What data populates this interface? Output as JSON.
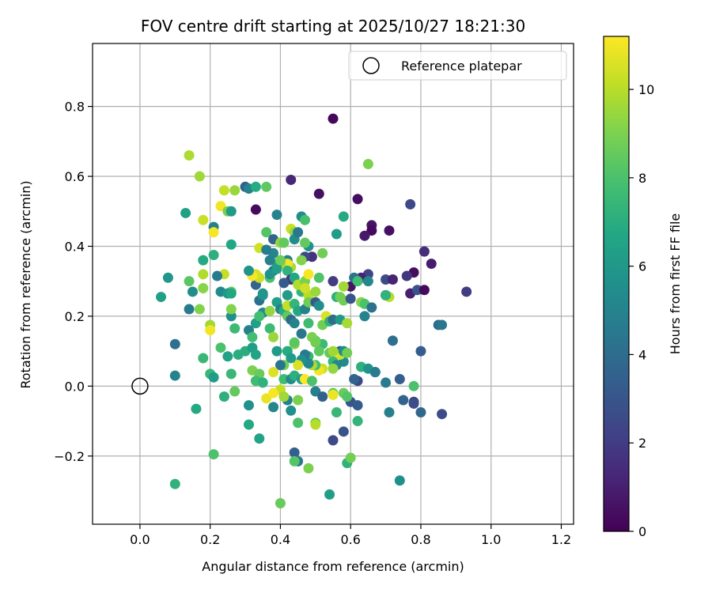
{
  "chart_data": {
    "type": "scatter",
    "title": "FOV centre drift starting at 2025/10/27 18:21:30",
    "xlabel": "Angular distance from reference (arcmin)",
    "ylabel": "Rotation from reference (arcmin)",
    "xlim": [
      -0.135,
      1.235
    ],
    "ylim": [
      -0.395,
      0.98
    ],
    "xticks": [
      0.0,
      0.2,
      0.4,
      0.6,
      0.8,
      1.0,
      1.2
    ],
    "xtick_labels": [
      "0.0",
      "0.2",
      "0.4",
      "0.6",
      "0.8",
      "1.0",
      "1.2"
    ],
    "yticks": [
      -0.2,
      0.0,
      0.2,
      0.4,
      0.6,
      0.8
    ],
    "ytick_labels": [
      "−0.2",
      "0.0",
      "0.2",
      "0.4",
      "0.6",
      "0.8"
    ],
    "grid": true,
    "legend": {
      "position": "top-right",
      "entries": [
        "Reference platepar"
      ]
    },
    "reference_point": {
      "x": 0.0,
      "y": 0.0,
      "label": "Reference platepar"
    },
    "colorbar": {
      "label": "Hours from first FF file",
      "colormap": "viridis",
      "vmin": 0,
      "vmax": 11.2,
      "ticks": [
        0,
        2,
        4,
        6,
        8,
        10
      ],
      "tick_labels": [
        "0",
        "2",
        "4",
        "6",
        "8",
        "10"
      ]
    },
    "points": [
      [
        0.55,
        0.765,
        0.2
      ],
      [
        0.51,
        0.55,
        0.5
      ],
      [
        0.62,
        0.535,
        0.4
      ],
      [
        0.33,
        0.505,
        0.3
      ],
      [
        0.66,
        0.46,
        0.6
      ],
      [
        0.66,
        0.445,
        0.3
      ],
      [
        0.64,
        0.43,
        0.8
      ],
      [
        0.71,
        0.445,
        0.5
      ],
      [
        0.77,
        0.52,
        2.5
      ],
      [
        0.81,
        0.385,
        1.5
      ],
      [
        0.83,
        0.35,
        0.9
      ],
      [
        0.78,
        0.325,
        0.4
      ],
      [
        0.76,
        0.315,
        1.8
      ],
      [
        0.7,
        0.305,
        2.6
      ],
      [
        0.72,
        0.305,
        1.2
      ],
      [
        0.65,
        0.32,
        2.3
      ],
      [
        0.63,
        0.31,
        1.1
      ],
      [
        0.6,
        0.285,
        0.6
      ],
      [
        0.7,
        0.26,
        0.7
      ],
      [
        0.77,
        0.265,
        1.0
      ],
      [
        0.79,
        0.275,
        3.0
      ],
      [
        0.81,
        0.275,
        0.3
      ],
      [
        0.93,
        0.27,
        2.0
      ],
      [
        0.85,
        0.175,
        3.9
      ],
      [
        0.86,
        0.175,
        4.4
      ],
      [
        0.72,
        0.13,
        4.1
      ],
      [
        0.8,
        0.1,
        3.3
      ],
      [
        0.67,
        0.04,
        0.8
      ],
      [
        0.62,
        0.015,
        2.4
      ],
      [
        0.7,
        0.01,
        4.6
      ],
      [
        0.74,
        0.02,
        3.4
      ],
      [
        0.78,
        0.0,
        8.0
      ],
      [
        0.75,
        -0.04,
        3.6
      ],
      [
        0.78,
        -0.045,
        2.2
      ],
      [
        0.78,
        -0.05,
        2.7
      ],
      [
        0.8,
        -0.075,
        3.8
      ],
      [
        0.86,
        -0.08,
        2.6
      ],
      [
        0.71,
        -0.075,
        4.9
      ],
      [
        0.74,
        -0.27,
        5.6
      ],
      [
        0.6,
        -0.045,
        3.0
      ],
      [
        0.62,
        -0.055,
        3.2
      ],
      [
        0.58,
        -0.13,
        2.9
      ],
      [
        0.55,
        -0.155,
        2.5
      ],
      [
        0.54,
        -0.31,
        6.3
      ],
      [
        0.59,
        -0.22,
        7.2
      ],
      [
        0.6,
        -0.205,
        8.8
      ],
      [
        0.62,
        -0.1,
        7.3
      ],
      [
        0.56,
        -0.075,
        7.5
      ],
      [
        0.44,
        -0.19,
        3.5
      ],
      [
        0.45,
        -0.215,
        4.5
      ],
      [
        0.44,
        -0.215,
        8.2
      ],
      [
        0.48,
        -0.235,
        9.0
      ],
      [
        0.4,
        -0.335,
        8.6
      ],
      [
        0.34,
        -0.15,
        6.5
      ],
      [
        0.31,
        -0.11,
        6.8
      ],
      [
        0.31,
        -0.055,
        5.7
      ],
      [
        0.21,
        -0.195,
        8.0
      ],
      [
        0.1,
        -0.28,
        7.2
      ],
      [
        0.16,
        -0.065,
        6.8
      ],
      [
        0.2,
        0.035,
        7.5
      ],
      [
        0.24,
        -0.03,
        7.1
      ],
      [
        0.27,
        -0.015,
        8.5
      ],
      [
        0.38,
        -0.06,
        5.2
      ],
      [
        0.42,
        -0.04,
        4.8
      ],
      [
        0.43,
        -0.07,
        5.6
      ],
      [
        0.45,
        -0.04,
        9.0
      ],
      [
        0.4,
        -0.01,
        10.2
      ],
      [
        0.36,
        -0.035,
        10.8
      ],
      [
        0.38,
        -0.02,
        11.1
      ],
      [
        0.41,
        -0.03,
        9.6
      ],
      [
        0.45,
        -0.105,
        8.0
      ],
      [
        0.5,
        -0.105,
        8.6
      ],
      [
        0.5,
        -0.11,
        10.0
      ],
      [
        0.1,
        0.03,
        5.0
      ],
      [
        0.1,
        0.12,
        4.1
      ],
      [
        0.08,
        0.31,
        5.9
      ],
      [
        0.06,
        0.255,
        6.4
      ],
      [
        0.14,
        0.22,
        4.6
      ],
      [
        0.15,
        0.27,
        5.5
      ],
      [
        0.17,
        0.22,
        9.1
      ],
      [
        0.18,
        0.08,
        7.5
      ],
      [
        0.2,
        0.175,
        9.6
      ],
      [
        0.2,
        0.16,
        11.0
      ],
      [
        0.21,
        0.025,
        6.2
      ],
      [
        0.23,
        0.11,
        8.0
      ],
      [
        0.25,
        0.085,
        6.5
      ],
      [
        0.26,
        0.035,
        7.5
      ],
      [
        0.26,
        0.2,
        5.6
      ],
      [
        0.26,
        0.22,
        9.1
      ],
      [
        0.27,
        0.165,
        7.6
      ],
      [
        0.28,
        0.09,
        7.0
      ],
      [
        0.3,
        0.1,
        7.0
      ],
      [
        0.32,
        0.11,
        6.3
      ],
      [
        0.31,
        0.16,
        4.9
      ],
      [
        0.32,
        0.14,
        7.8
      ],
      [
        0.33,
        0.18,
        6.4
      ],
      [
        0.33,
        0.09,
        6.6
      ],
      [
        0.32,
        0.045,
        9.0
      ],
      [
        0.34,
        0.035,
        8.6
      ],
      [
        0.33,
        0.015,
        7.7
      ],
      [
        0.35,
        0.01,
        7.2
      ],
      [
        0.35,
        0.21,
        5.3
      ],
      [
        0.34,
        0.2,
        7.8
      ],
      [
        0.34,
        0.245,
        4.1
      ],
      [
        0.33,
        0.29,
        3.6
      ],
      [
        0.35,
        0.26,
        5.8
      ],
      [
        0.37,
        0.215,
        9.4
      ],
      [
        0.37,
        0.165,
        7.6
      ],
      [
        0.39,
        0.24,
        6.4
      ],
      [
        0.4,
        0.22,
        4.9
      ],
      [
        0.41,
        0.215,
        6.9
      ],
      [
        0.42,
        0.26,
        6.2
      ],
      [
        0.42,
        0.23,
        10.2
      ],
      [
        0.42,
        0.2,
        8.5
      ],
      [
        0.43,
        0.19,
        3.7
      ],
      [
        0.44,
        0.235,
        7.4
      ],
      [
        0.44,
        0.18,
        5.0
      ],
      [
        0.45,
        0.215,
        6.7
      ],
      [
        0.46,
        0.27,
        7.3
      ],
      [
        0.47,
        0.22,
        4.9
      ],
      [
        0.48,
        0.26,
        10.0
      ],
      [
        0.48,
        0.24,
        8.8
      ],
      [
        0.48,
        0.18,
        7.7
      ],
      [
        0.5,
        0.24,
        3.2
      ],
      [
        0.5,
        0.13,
        8.5
      ],
      [
        0.51,
        0.12,
        9.5
      ],
      [
        0.52,
        0.12,
        7.6
      ],
      [
        0.51,
        0.23,
        5.5
      ],
      [
        0.52,
        0.175,
        8.8
      ],
      [
        0.53,
        0.2,
        10.6
      ],
      [
        0.54,
        0.185,
        7.2
      ],
      [
        0.55,
        0.19,
        4.0
      ],
      [
        0.56,
        0.255,
        7.1
      ],
      [
        0.57,
        0.255,
        8.8
      ],
      [
        0.57,
        0.19,
        6.1
      ],
      [
        0.58,
        0.285,
        9.6
      ],
      [
        0.58,
        0.245,
        8.8
      ],
      [
        0.59,
        0.18,
        9.7
      ],
      [
        0.6,
        0.25,
        2.9
      ],
      [
        0.61,
        0.31,
        4.3
      ],
      [
        0.63,
        0.24,
        9.2
      ],
      [
        0.64,
        0.235,
        8.0
      ],
      [
        0.64,
        0.2,
        5.0
      ],
      [
        0.66,
        0.225,
        4.2
      ],
      [
        0.71,
        0.255,
        10.0
      ],
      [
        0.7,
        0.26,
        7.2
      ],
      [
        0.65,
        0.3,
        5.2
      ],
      [
        0.57,
        0.1,
        3.3
      ],
      [
        0.58,
        0.07,
        5.4
      ],
      [
        0.57,
        0.09,
        10.4
      ],
      [
        0.55,
        0.09,
        10.8
      ],
      [
        0.55,
        0.07,
        7.5
      ],
      [
        0.56,
        0.06,
        5.2
      ],
      [
        0.55,
        0.05,
        9.4
      ],
      [
        0.52,
        0.05,
        10.3
      ],
      [
        0.51,
        0.045,
        11.0
      ],
      [
        0.5,
        0.06,
        7.8
      ],
      [
        0.49,
        0.06,
        9.8
      ],
      [
        0.48,
        0.085,
        7.4
      ],
      [
        0.48,
        0.065,
        5.2
      ],
      [
        0.47,
        0.09,
        4.6
      ],
      [
        0.46,
        0.075,
        5.6
      ],
      [
        0.45,
        0.06,
        10.6
      ],
      [
        0.44,
        0.12,
        9.3
      ],
      [
        0.44,
        0.125,
        8.3
      ],
      [
        0.42,
        0.1,
        6.9
      ],
      [
        0.43,
        0.08,
        6.2
      ],
      [
        0.41,
        0.06,
        8.8
      ],
      [
        0.4,
        0.06,
        4.3
      ],
      [
        0.41,
        0.02,
        7.7
      ],
      [
        0.43,
        0.02,
        5.4
      ],
      [
        0.44,
        0.03,
        7.1
      ],
      [
        0.46,
        0.02,
        6.3
      ],
      [
        0.47,
        0.02,
        11.2
      ],
      [
        0.49,
        0.015,
        8.0
      ],
      [
        0.5,
        -0.015,
        4.8
      ],
      [
        0.52,
        -0.03,
        3.5
      ],
      [
        0.55,
        -0.02,
        8.4
      ],
      [
        0.58,
        -0.02,
        8.6
      ],
      [
        0.59,
        -0.03,
        8.2
      ],
      [
        0.55,
        -0.025,
        10.9
      ],
      [
        0.38,
        0.04,
        10.6
      ],
      [
        0.39,
        0.1,
        6.1
      ],
      [
        0.38,
        0.14,
        9.5
      ],
      [
        0.46,
        0.15,
        4.4
      ],
      [
        0.49,
        0.14,
        9.0
      ],
      [
        0.5,
        0.125,
        8.8
      ],
      [
        0.51,
        0.1,
        8.4
      ],
      [
        0.54,
        0.095,
        8.5
      ],
      [
        0.55,
        0.1,
        9.6
      ],
      [
        0.58,
        0.1,
        5.3
      ],
      [
        0.59,
        0.095,
        8.8
      ],
      [
        0.63,
        0.055,
        7.1
      ],
      [
        0.65,
        0.05,
        5.8
      ],
      [
        0.61,
        0.02,
        3.6
      ],
      [
        0.67,
        0.04,
        4.7
      ],
      [
        0.14,
        0.66,
        9.8
      ],
      [
        0.17,
        0.6,
        9.6
      ],
      [
        0.24,
        0.56,
        10.2
      ],
      [
        0.27,
        0.56,
        9.5
      ],
      [
        0.3,
        0.57,
        3.4
      ],
      [
        0.31,
        0.565,
        5.0
      ],
      [
        0.33,
        0.57,
        6.9
      ],
      [
        0.36,
        0.57,
        8.4
      ],
      [
        0.43,
        0.59,
        1.3
      ],
      [
        0.65,
        0.635,
        9.0
      ],
      [
        0.13,
        0.495,
        6.4
      ],
      [
        0.18,
        0.475,
        10.3
      ],
      [
        0.21,
        0.455,
        4.8
      ],
      [
        0.21,
        0.44,
        11.1
      ],
      [
        0.23,
        0.515,
        11.0
      ],
      [
        0.25,
        0.5,
        8.9
      ],
      [
        0.26,
        0.5,
        6.1
      ],
      [
        0.18,
        0.36,
        6.8
      ],
      [
        0.21,
        0.375,
        7.1
      ],
      [
        0.26,
        0.405,
        6.7
      ],
      [
        0.18,
        0.32,
        9.9
      ],
      [
        0.24,
        0.32,
        10.2
      ],
      [
        0.22,
        0.315,
        4.6
      ],
      [
        0.18,
        0.28,
        9.2
      ],
      [
        0.14,
        0.3,
        8.3
      ],
      [
        0.23,
        0.27,
        5.3
      ],
      [
        0.26,
        0.27,
        8.5
      ],
      [
        0.25,
        0.265,
        6.0
      ],
      [
        0.26,
        0.265,
        6.7
      ],
      [
        0.35,
        0.265,
        5.9
      ],
      [
        0.36,
        0.44,
        8.2
      ],
      [
        0.38,
        0.42,
        3.6
      ],
      [
        0.38,
        0.38,
        5.1
      ],
      [
        0.39,
        0.49,
        5.0
      ],
      [
        0.4,
        0.41,
        9.4
      ],
      [
        0.41,
        0.41,
        8.5
      ],
      [
        0.42,
        0.36,
        4.9
      ],
      [
        0.43,
        0.45,
        10.3
      ],
      [
        0.44,
        0.44,
        9.4
      ],
      [
        0.44,
        0.42,
        5.5
      ],
      [
        0.43,
        0.34,
        9.7
      ],
      [
        0.42,
        0.35,
        11.0
      ],
      [
        0.42,
        0.33,
        7.2
      ],
      [
        0.43,
        0.305,
        1.7
      ],
      [
        0.44,
        0.31,
        6.7
      ],
      [
        0.41,
        0.295,
        3.2
      ],
      [
        0.4,
        0.35,
        9.6
      ],
      [
        0.39,
        0.35,
        6.7
      ],
      [
        0.38,
        0.33,
        4.2
      ],
      [
        0.37,
        0.31,
        8.0
      ],
      [
        0.37,
        0.32,
        5.7
      ],
      [
        0.34,
        0.31,
        10.3
      ],
      [
        0.33,
        0.32,
        10.5
      ],
      [
        0.32,
        0.315,
        11.1
      ],
      [
        0.31,
        0.33,
        5.8
      ],
      [
        0.34,
        0.395,
        10.4
      ],
      [
        0.36,
        0.39,
        4.7
      ],
      [
        0.37,
        0.36,
        4.9
      ],
      [
        0.39,
        0.335,
        6.3
      ],
      [
        0.4,
        0.36,
        8.7
      ],
      [
        0.45,
        0.44,
        4.5
      ],
      [
        0.46,
        0.485,
        5.5
      ],
      [
        0.47,
        0.475,
        7.9
      ],
      [
        0.48,
        0.4,
        5.7
      ],
      [
        0.49,
        0.37,
        1.6
      ],
      [
        0.47,
        0.37,
        2.4
      ],
      [
        0.47,
        0.41,
        8.5
      ],
      [
        0.46,
        0.36,
        9.1
      ],
      [
        0.45,
        0.29,
        9.9
      ],
      [
        0.47,
        0.3,
        9.0
      ],
      [
        0.47,
        0.28,
        10.4
      ],
      [
        0.48,
        0.32,
        11.1
      ],
      [
        0.51,
        0.31,
        8.1
      ],
      [
        0.5,
        0.27,
        9.5
      ],
      [
        0.52,
        0.38,
        8.8
      ],
      [
        0.55,
        0.3,
        2.0
      ],
      [
        0.56,
        0.435,
        6.2
      ],
      [
        0.58,
        0.485,
        6.8
      ],
      [
        0.62,
        0.3,
        7.8
      ]
    ]
  }
}
